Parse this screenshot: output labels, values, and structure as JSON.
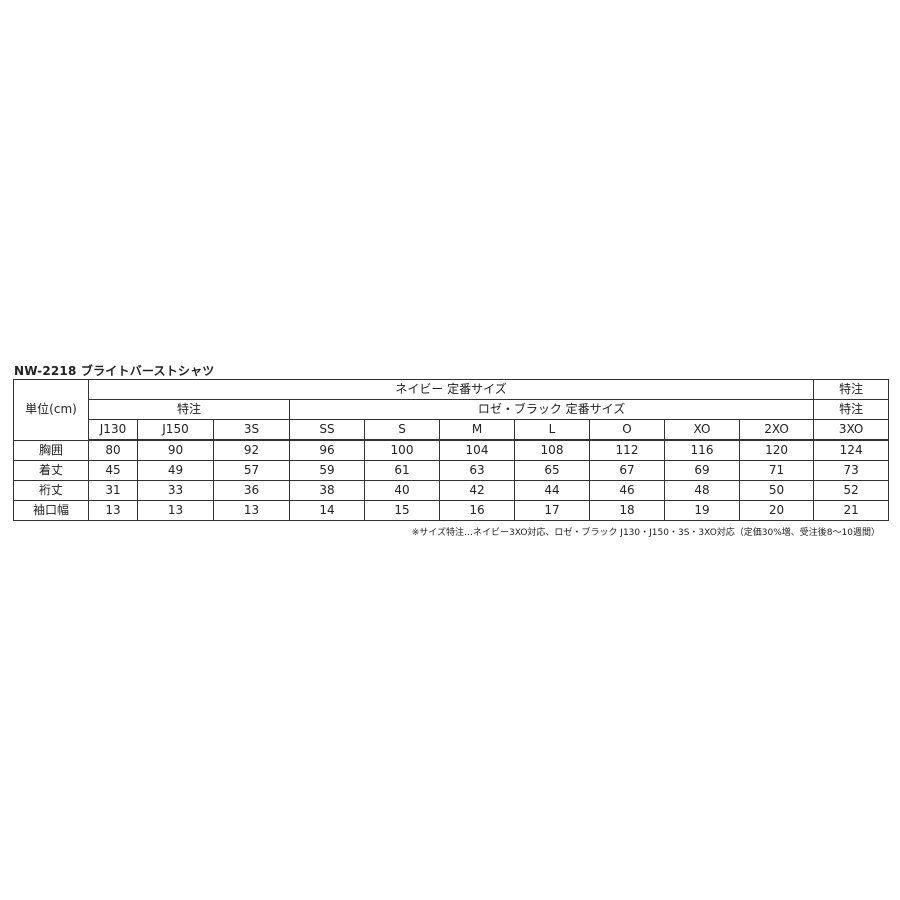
{
  "title": "NW-2218  ブライトバーストシャツ",
  "unit_label": "単位(cm)",
  "header_row1": {
    "navy": "ネイビー  定番サイズ",
    "special": "特注"
  },
  "header_row2": {
    "special_left": "特注",
    "rose_black": "ロゼ・ブラック  定番サイズ",
    "special_right": "特注"
  },
  "sizes": [
    "J130",
    "J150",
    "3S",
    "SS",
    "S",
    "M",
    "L",
    "O",
    "XO",
    "2XO",
    "3XO"
  ],
  "rows": [
    {
      "label": "胸囲",
      "values": [
        "80",
        "90",
        "92",
        "96",
        "100",
        "104",
        "108",
        "112",
        "116",
        "120",
        "124"
      ]
    },
    {
      "label": "着丈",
      "values": [
        "45",
        "49",
        "57",
        "59",
        "61",
        "63",
        "65",
        "67",
        "69",
        "71",
        "73"
      ]
    },
    {
      "label": "裄丈",
      "values": [
        "31",
        "33",
        "36",
        "38",
        "40",
        "42",
        "44",
        "46",
        "48",
        "50",
        "52"
      ]
    },
    {
      "label": "袖口幅",
      "values": [
        "13",
        "13",
        "13",
        "14",
        "15",
        "16",
        "17",
        "18",
        "19",
        "20",
        "21"
      ]
    }
  ],
  "note": "※サイズ特注…ネイビー3XO対応、ロゼ・ブラック J130・J150・3S・3XO対応（定価30%増、受注後8～10週間）"
}
